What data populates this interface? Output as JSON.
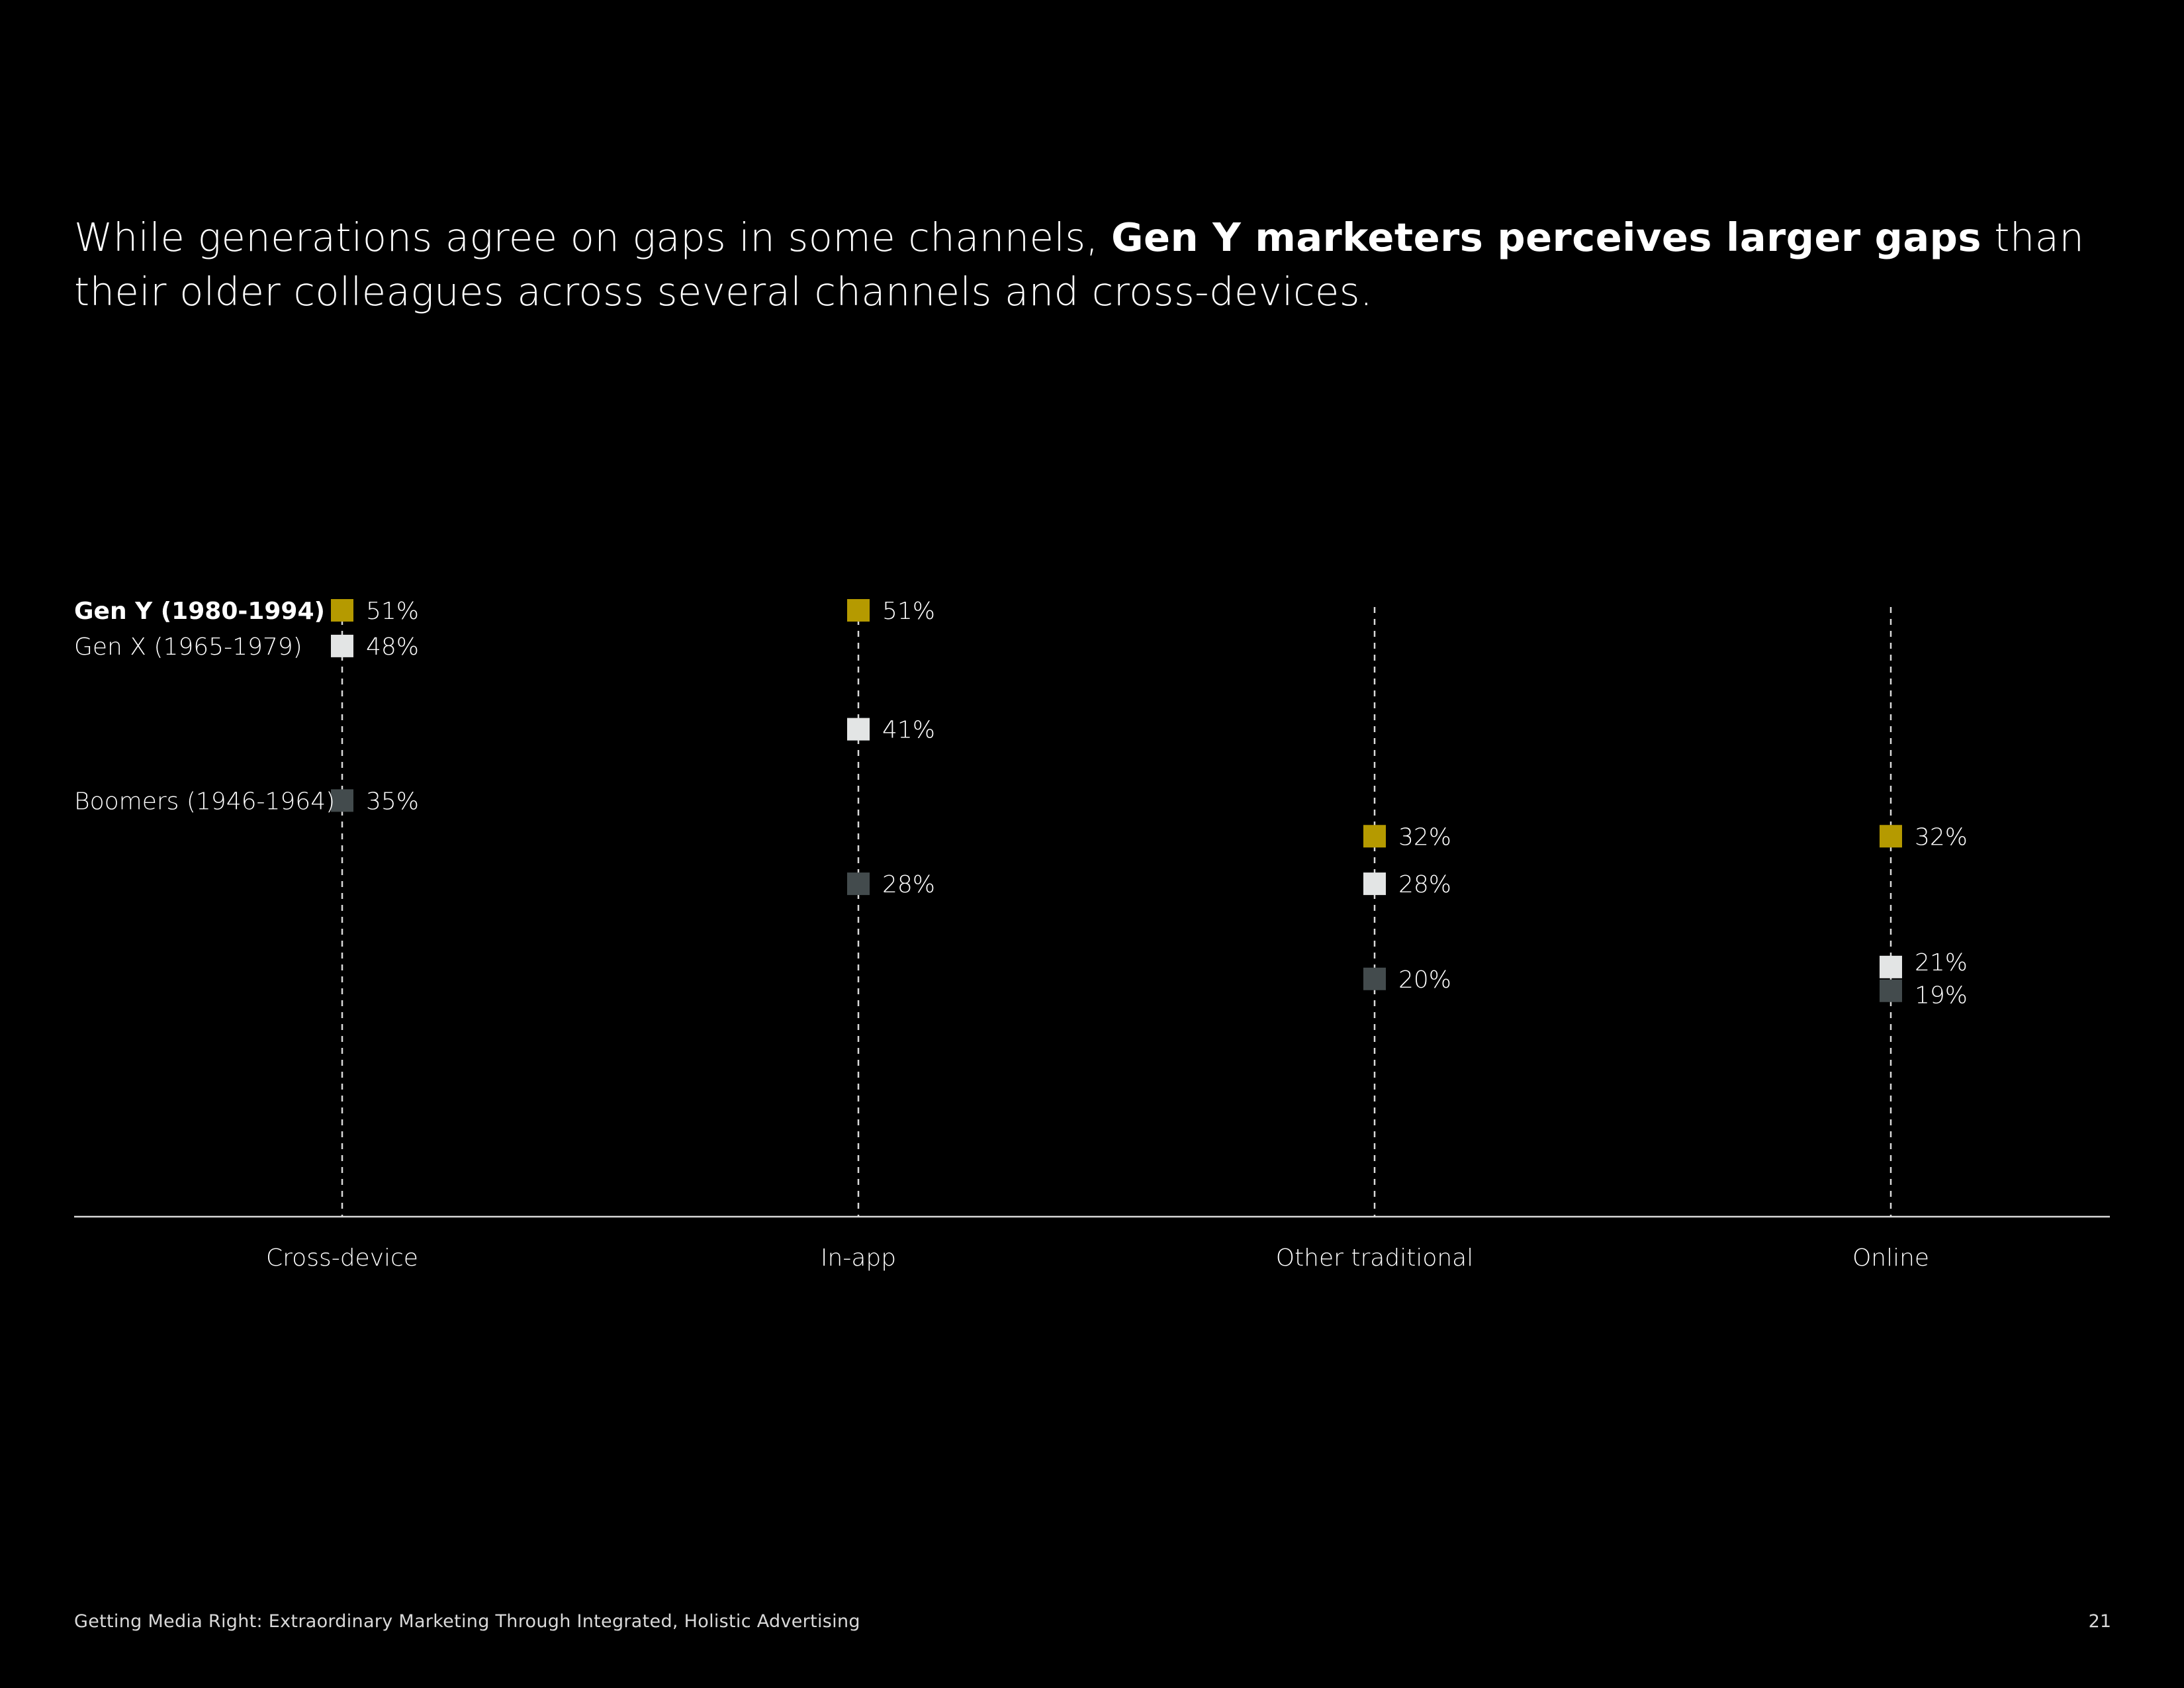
{
  "headline": {
    "part1": "While generations agree on gaps in some channels, ",
    "bold": "Gen Y marketers perceives larger gaps",
    "part2": " than their older colleagues across several channels and cross-devices."
  },
  "footer": {
    "text": "Getting Media Right: Extraordinary Marketing Through Integrated, Holistic Advertising",
    "page_number": "21"
  },
  "chart_data": {
    "type": "scatter",
    "title": "",
    "xlabel": "",
    "ylabel": "",
    "ylim": [
      0,
      51
    ],
    "categories": [
      "Cross-device",
      "In-app",
      "Other traditional",
      "Online"
    ],
    "series": [
      {
        "name": "Gen Y (1980-1994)",
        "color": "#b59a00",
        "values": [
          51,
          51,
          32,
          32
        ]
      },
      {
        "name": "Gen X (1965-1979)",
        "color": "#e3e5e5",
        "values": [
          48,
          41,
          28,
          21
        ]
      },
      {
        "name": "Boomers (1946-1964)",
        "color": "#434b4d",
        "values": [
          35,
          28,
          20,
          19
        ]
      }
    ],
    "data_labels": [
      [
        "51%",
        "51%",
        "32%",
        "32%"
      ],
      [
        "48%",
        "41%",
        "28%",
        "21%"
      ],
      [
        "35%",
        "28%",
        "20%",
        "19%"
      ]
    ],
    "legend": "left, inline with first category"
  }
}
